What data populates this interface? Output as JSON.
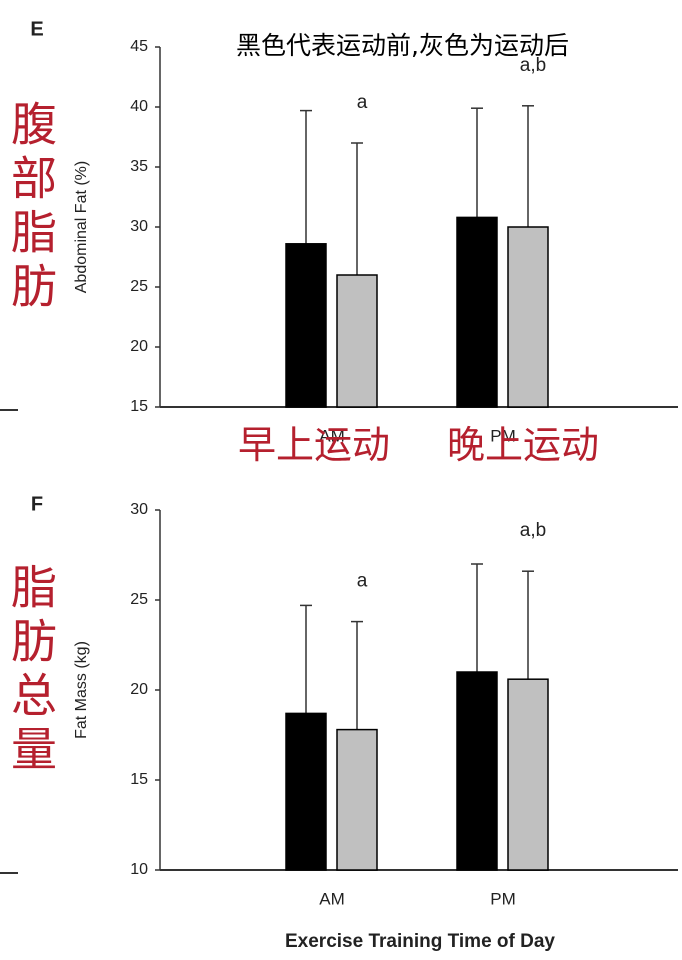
{
  "chart_data": [
    {
      "type": "bar",
      "panel": "E",
      "y_label": "Abdominal Fat (%)",
      "categories": [
        "AM",
        "PM"
      ],
      "series": [
        {
          "color": "#000000",
          "values": [
            28.6,
            30.8
          ],
          "errors": [
            11.1,
            9.1
          ]
        },
        {
          "color": "#c0c0c0",
          "values": [
            26,
            30
          ],
          "errors": [
            11,
            10.1
          ],
          "annotations": [
            "a",
            "a,b"
          ]
        }
      ],
      "ylim": [
        15,
        45
      ],
      "yticks": [
        15,
        20,
        25,
        30,
        35,
        40,
        45
      ]
    },
    {
      "type": "bar",
      "panel": "F",
      "y_label": "Fat Mass (kg)",
      "x_label": "Exercise Training Time of Day",
      "categories": [
        "AM",
        "PM"
      ],
      "series": [
        {
          "color": "#000000",
          "values": [
            18.7,
            21
          ],
          "errors": [
            6,
            6
          ]
        },
        {
          "color": "#c0c0c0",
          "values": [
            17.8,
            20.6
          ],
          "errors": [
            6,
            6
          ],
          "annotations": [
            "a",
            "a,b"
          ]
        }
      ],
      "ylim": [
        10,
        30
      ],
      "yticks": [
        10,
        15,
        20,
        25,
        30
      ]
    }
  ],
  "overlay": {
    "note": "黑色代表运动前,灰色为运动后",
    "abdominal_fat": "腹部脂肪",
    "morning": "早上运动",
    "evening": "晚上运动",
    "total_fat": "脂肪总量"
  }
}
